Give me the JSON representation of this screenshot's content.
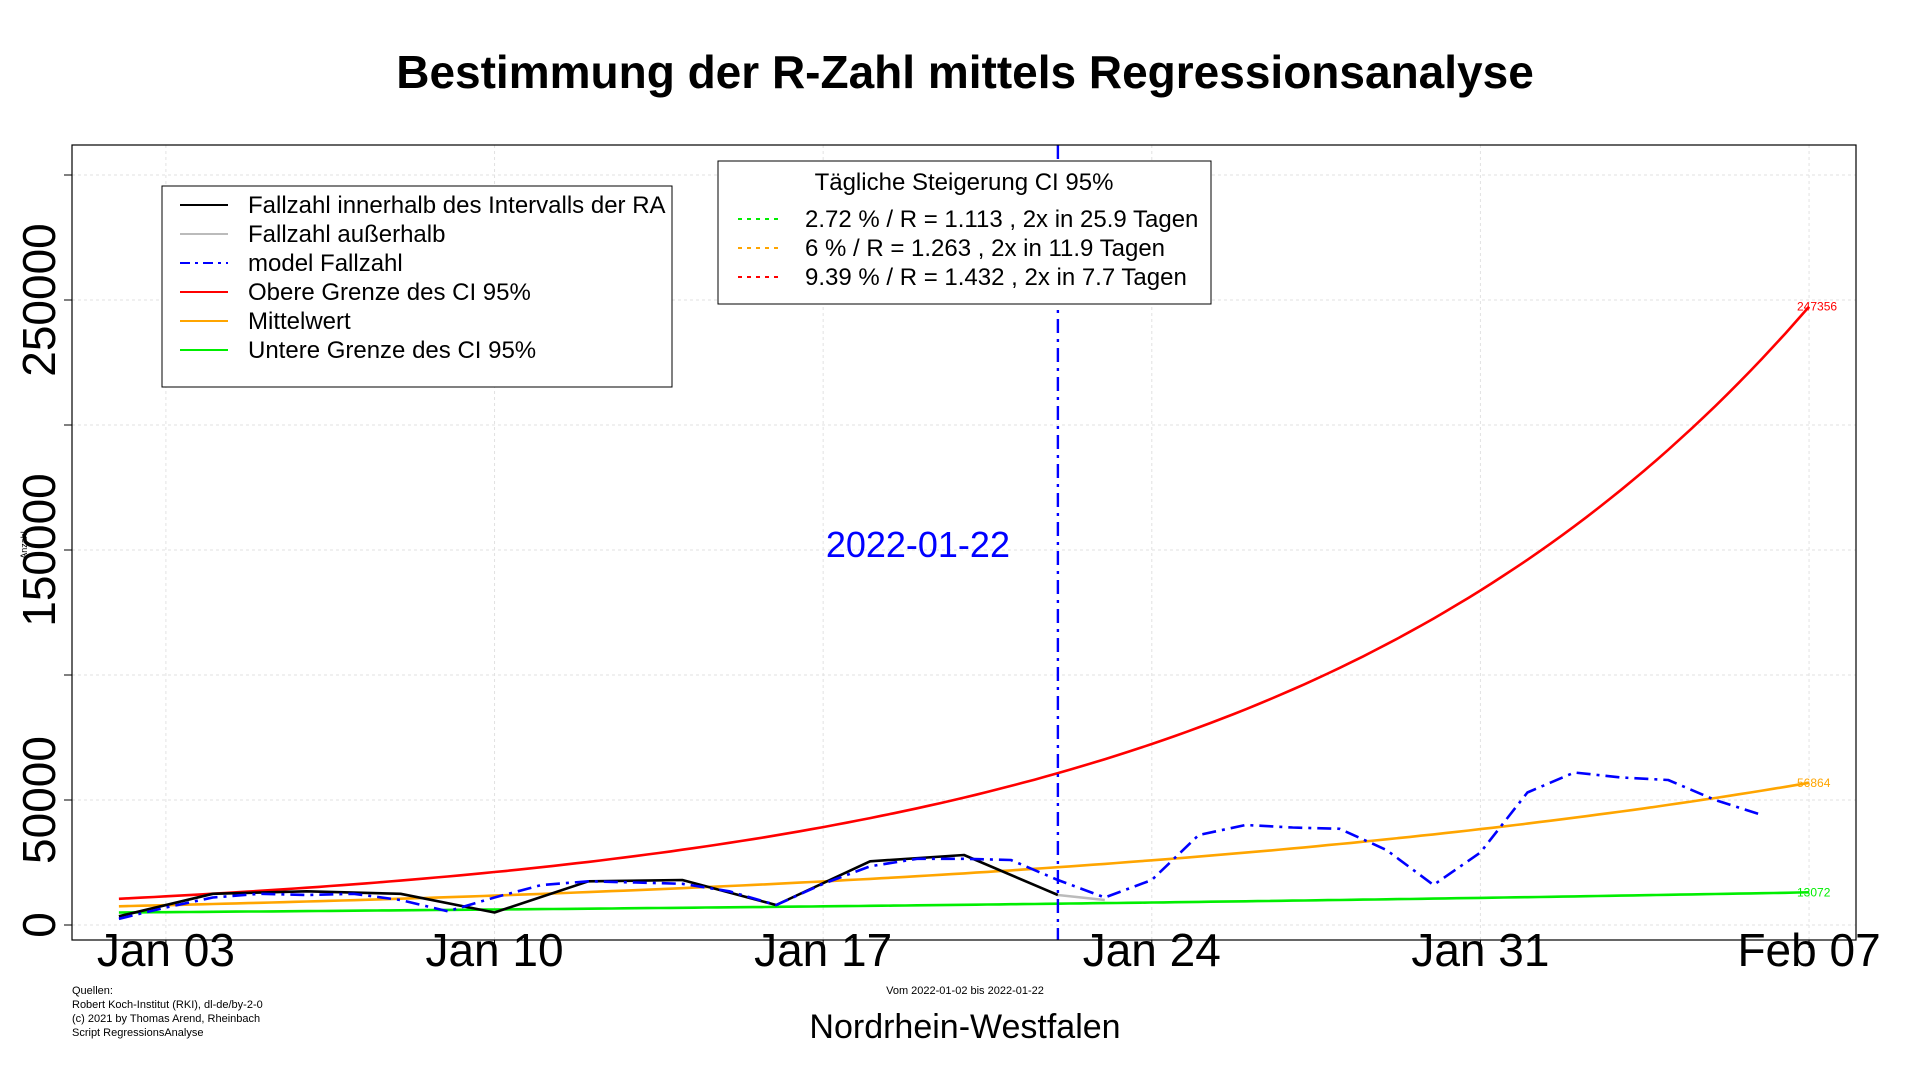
{
  "chart_data": {
    "type": "line",
    "title": "Bestimmung der R-Zahl mittels Regressionsanalyse",
    "xlabel": "Nordrhein-Westfalen",
    "ylabel": "",
    "subtitle": "Vom 2022-01-02 bis 2022-01-22",
    "x_ticks": [
      "Jan 03",
      "Jan 10",
      "Jan 17",
      "Jan 24",
      "Jan 31",
      "Feb 07"
    ],
    "y_ticks": [
      0,
      50000,
      150000,
      250000
    ],
    "y_minor_ticks": [
      100000,
      200000,
      300000
    ],
    "xlim": [
      "2022-01-01",
      "2022-02-08"
    ],
    "ylim": [
      -6000,
      312000
    ],
    "grid": true,
    "vertical_marker": {
      "date": "2022-01-22",
      "label": "2022-01-22",
      "color": "#0000ff"
    },
    "series": [
      {
        "name": "Fallzahl innerhalb des Intervalls der RA",
        "color": "#000000",
        "style": "solid",
        "x": [
          "2022-01-02",
          "2022-01-04",
          "2022-01-06",
          "2022-01-08",
          "2022-01-10",
          "2022-01-12",
          "2022-01-14",
          "2022-01-16",
          "2022-01-18",
          "2022-01-20",
          "2022-01-22"
        ],
        "y": [
          3500,
          12500,
          13500,
          12500,
          5000,
          17500,
          18000,
          8000,
          25500,
          28000,
          12000
        ]
      },
      {
        "name": "Fallzahl außerhalb",
        "color": "#bbbbbb",
        "style": "solid",
        "x": [
          "2022-01-22",
          "2022-01-23"
        ],
        "y": [
          12000,
          10000
        ]
      },
      {
        "name": "model Fallzahl",
        "color": "#0000ff",
        "style": "dashdot",
        "x": [
          "2022-01-02",
          "2022-01-03",
          "2022-01-04",
          "2022-01-05",
          "2022-01-06",
          "2022-01-07",
          "2022-01-08",
          "2022-01-09",
          "2022-01-10",
          "2022-01-11",
          "2022-01-12",
          "2022-01-13",
          "2022-01-14",
          "2022-01-15",
          "2022-01-16",
          "2022-01-17",
          "2022-01-18",
          "2022-01-19",
          "2022-01-20",
          "2022-01-21",
          "2022-01-22",
          "2022-01-23",
          "2022-01-24",
          "2022-01-25",
          "2022-01-26",
          "2022-01-27",
          "2022-01-28",
          "2022-01-29",
          "2022-01-30",
          "2022-01-31",
          "2022-02-01",
          "2022-02-02",
          "2022-02-03",
          "2022-02-04",
          "2022-02-05",
          "2022-02-06"
        ],
        "y": [
          2500,
          7000,
          11000,
          12500,
          12000,
          12500,
          10000,
          5500,
          11000,
          16000,
          17500,
          17000,
          16500,
          13500,
          8000,
          16500,
          23500,
          26500,
          26500,
          26000,
          18000,
          11000,
          18000,
          36000,
          40000,
          39000,
          38500,
          30000,
          16000,
          29000,
          53000,
          61000,
          59000,
          58000,
          50000,
          44000
        ]
      },
      {
        "name": "Obere Grenze des CI 95%",
        "color": "#ff0000",
        "style": "solid",
        "model": "exponential",
        "daily_growth_percent": 9.39,
        "x": [
          "2022-01-02",
          "2022-02-07"
        ],
        "y": [
          10500,
          247356
        ]
      },
      {
        "name": "Mittelwert",
        "color": "#ffa500",
        "style": "solid",
        "model": "exponential",
        "daily_growth_percent": 6,
        "x": [
          "2022-01-02",
          "2022-02-07"
        ],
        "y": [
          7500,
          56864
        ]
      },
      {
        "name": "Untere Grenze des CI 95%",
        "color": "#00ee00",
        "style": "solid",
        "model": "exponential",
        "daily_growth_percent": 2.72,
        "x": [
          "2022-01-02",
          "2022-02-07"
        ],
        "y": [
          5000,
          13072
        ]
      }
    ],
    "end_labels": [
      {
        "text": "247356",
        "color": "#ff0000",
        "y": 247356
      },
      {
        "text": "56864",
        "color": "#ffa500",
        "y": 56864
      },
      {
        "text": "13072",
        "color": "#00ee00",
        "y": 13072
      }
    ],
    "legend": {
      "position": "top-left",
      "entries": [
        {
          "label": "Fallzahl innerhalb des Intervalls der RA",
          "color": "#000000",
          "style": "solid"
        },
        {
          "label": "Fallzahl außerhalb",
          "color": "#bbbbbb",
          "style": "solid"
        },
        {
          "label": "model Fallzahl",
          "color": "#0000ff",
          "style": "dashdot"
        },
        {
          "label": "Obere Grenze des CI 95%",
          "color": "#ff0000",
          "style": "solid"
        },
        {
          "label": "Mittelwert",
          "color": "#ffa500",
          "style": "solid"
        },
        {
          "label": "Untere Grenze des CI 95%",
          "color": "#00ee00",
          "style": "solid"
        }
      ]
    },
    "ci_legend": {
      "position": "top-center",
      "title": "Tägliche Steigerung CI  95%",
      "entries": [
        {
          "label": "2.72 % / R = 1.113 , 2x in 25.9 Tagen",
          "color": "#00ee00"
        },
        {
          "label": "6 % / R = 1.263 , 2x in 11.9 Tagen",
          "color": "#ffa500"
        },
        {
          "label": "9.39 % / R = 1.432 , 2x in 7.7 Tagen",
          "color": "#ff0000"
        }
      ]
    },
    "source_text": [
      "Quellen:",
      "Robert Koch-Institut (RKI), dl-de/by-2-0",
      "(c) 2021 by Thomas Arend, Rheinbach",
      "Script RegressionsAnalyse"
    ],
    "y_axis_tiny_label": "Anzahl"
  }
}
